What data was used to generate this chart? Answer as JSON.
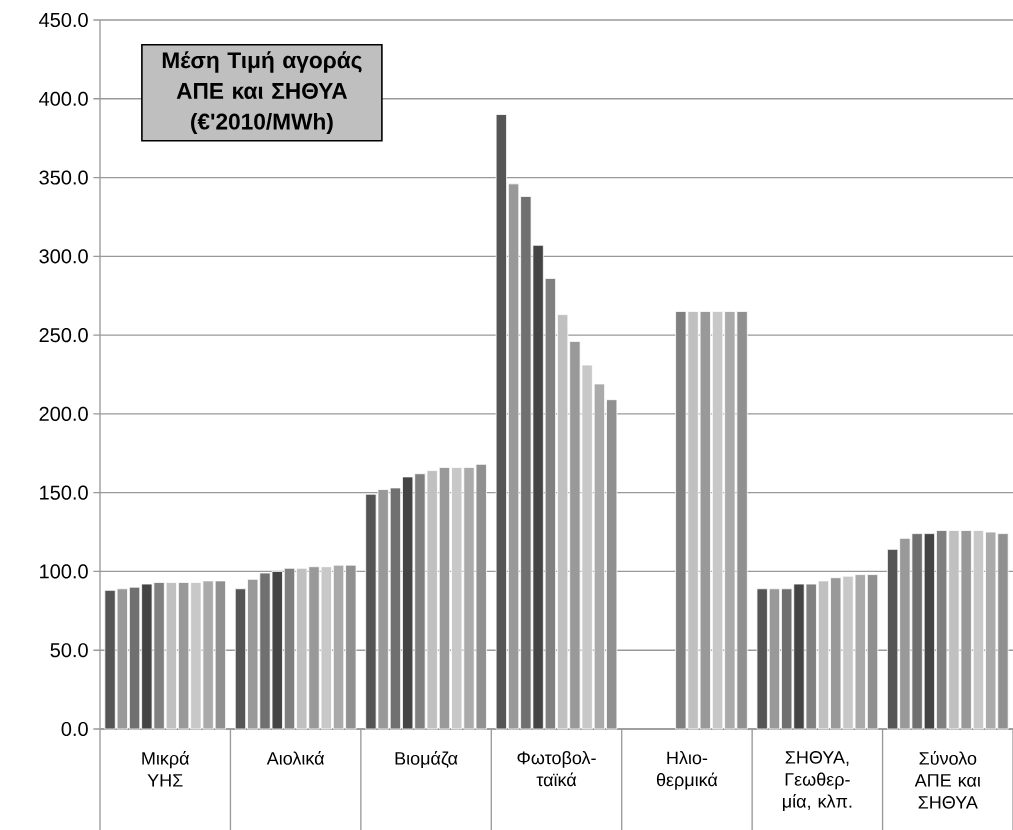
{
  "chart_data": {
    "type": "bar",
    "title": "Μέση Τιμή αγοράς ΑΠΕ και ΣΗΘΥΑ (€'2010/MWh)",
    "categories": [
      "Μικρά ΥΗΣ",
      "Αιολικά",
      "Βιομάζα",
      "Φωτοβολ-ταϊκά",
      "Ηλιο-θερμικά",
      "ΣΗΘΥΑ, Γεωθερ-μία, κλπ.",
      "Σύνολο ΑΠΕ και ΣΗΘΥΑ"
    ],
    "series": [
      {
        "color": "#555555",
        "values": [
          88,
          89,
          149,
          390,
          null,
          89,
          114
        ]
      },
      {
        "color": "#999999",
        "values": [
          89,
          95,
          152,
          346,
          null,
          89,
          121
        ]
      },
      {
        "color": "#707070",
        "values": [
          90,
          99,
          153,
          338,
          null,
          89,
          124
        ]
      },
      {
        "color": "#444444",
        "values": [
          92,
          100,
          160,
          307,
          null,
          92,
          124
        ]
      },
      {
        "color": "#808080",
        "values": [
          93,
          102,
          162,
          286,
          265,
          92,
          126
        ]
      },
      {
        "color": "#c0c0c0",
        "values": [
          93,
          102,
          164,
          263,
          265,
          94,
          126
        ]
      },
      {
        "color": "#999999",
        "values": [
          93,
          103,
          166,
          246,
          265,
          96,
          126
        ]
      },
      {
        "color": "#c8c8c8",
        "values": [
          93,
          103,
          166,
          231,
          265,
          97,
          126
        ]
      },
      {
        "color": "#aaaaaa",
        "values": [
          94,
          104,
          166,
          219,
          265,
          98,
          125
        ]
      },
      {
        "color": "#909090",
        "values": [
          94,
          104,
          168,
          209,
          265,
          98,
          124
        ]
      }
    ],
    "ylim": [
      0,
      450
    ],
    "yticks": [
      {
        "value": 0,
        "label": "0.0"
      },
      {
        "value": 50,
        "label": "50.0"
      },
      {
        "value": 100,
        "label": "100.0"
      },
      {
        "value": 150,
        "label": "150.0"
      },
      {
        "value": 200,
        "label": "200.0"
      },
      {
        "value": 250,
        "label": "250.0"
      },
      {
        "value": 300,
        "label": "300.0"
      },
      {
        "value": 350,
        "label": "350.0"
      },
      {
        "value": 400,
        "label": "400.0"
      },
      {
        "value": 450,
        "label": "450.0"
      }
    ],
    "grid": "y"
  }
}
